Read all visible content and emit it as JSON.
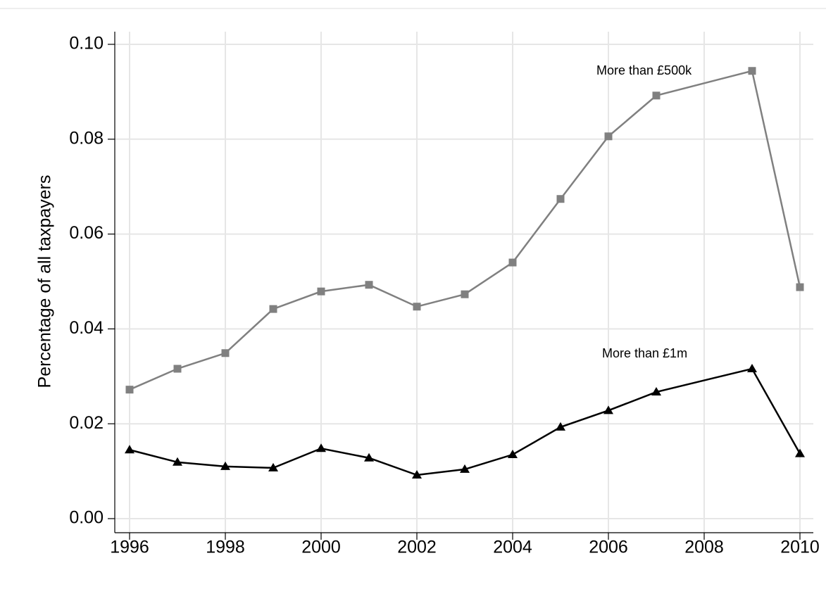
{
  "chart_data": {
    "type": "line",
    "y_label": "Percentage of all taxpayers",
    "xlim": [
      1996,
      2010
    ],
    "xticks": [
      1996,
      1998,
      2000,
      2002,
      2004,
      2006,
      2008,
      2010
    ],
    "ylim": [
      0,
      0.1
    ],
    "yticks": [
      {
        "value": 0,
        "label": "0.00"
      },
      {
        "value": 0.02,
        "label": "0.02"
      },
      {
        "value": 0.04,
        "label": "0.04"
      },
      {
        "value": 0.06,
        "label": "0.06"
      },
      {
        "value": 0.08,
        "label": "0.08"
      },
      {
        "value": 0.1,
        "label": "0.10"
      }
    ],
    "grid": true,
    "series": [
      {
        "name": "More than £500k",
        "color": "#808080",
        "marker": "square",
        "x": [
          1996,
          1997,
          1998,
          1999,
          2000,
          2001,
          2002,
          2003,
          2004,
          2005,
          2006,
          2007,
          2009,
          2010
        ],
        "values": [
          0.0272,
          0.0316,
          0.0349,
          0.0442,
          0.0479,
          0.0493,
          0.0447,
          0.0473,
          0.054,
          0.0674,
          0.0806,
          0.0892,
          0.0944,
          0.0488
        ]
      },
      {
        "name": "More than £1m",
        "color": "#000000",
        "marker": "triangle",
        "x": [
          1996,
          1997,
          1998,
          1999,
          2000,
          2001,
          2002,
          2003,
          2004,
          2005,
          2006,
          2007,
          2009,
          2010
        ],
        "values": [
          0.0145,
          0.0119,
          0.011,
          0.0107,
          0.0148,
          0.0128,
          0.0092,
          0.0104,
          0.0135,
          0.0193,
          0.0228,
          0.0267,
          0.0316,
          0.0137
        ]
      }
    ]
  }
}
